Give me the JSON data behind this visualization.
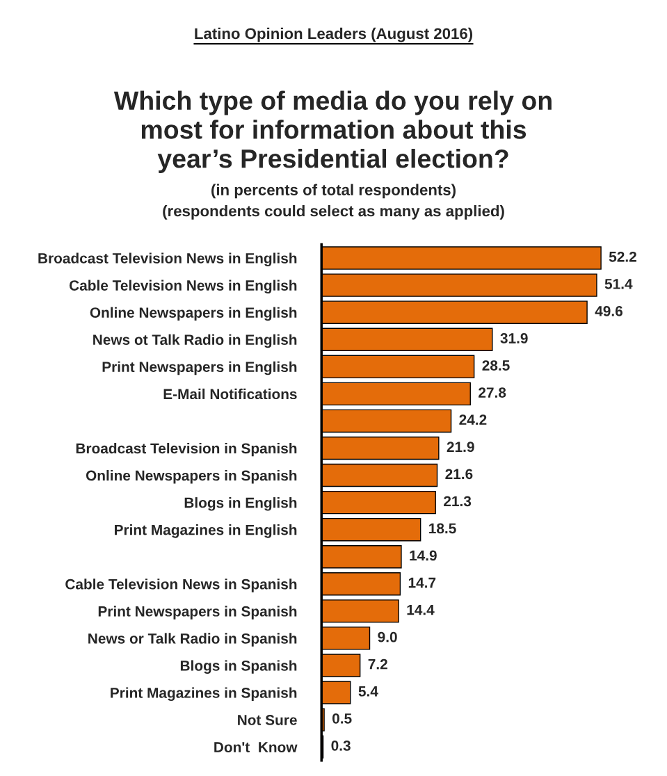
{
  "chart_data": {
    "type": "bar",
    "orientation": "horizontal",
    "annotations": [
      "Latino Opinion Leaders (August 2016)"
    ],
    "title": "Which type of media do you rely on\nmost for information about this\nyear’s Presidential election?",
    "subtitle": "(in percents of total respondents)\n(respondents could select as many as applied)",
    "categories": [
      "Broadcast Television News in English",
      "Cable Television News in English",
      "Online Newspapers in English",
      "News ot Talk Radio in English",
      "Print Newspapers in English",
      "E-Mail Notifications",
      null,
      "Broadcast Television in Spanish",
      "Online Newspapers in Spanish",
      "Blogs in English",
      "Print Magazines in English",
      null,
      "Cable Television News in Spanish",
      "Print Newspapers in Spanish",
      "News or Talk Radio in Spanish",
      "Blogs in Spanish",
      "Print Magazines in Spanish",
      "Not Sure",
      "Don't  Know"
    ],
    "values": [
      52.2,
      51.4,
      49.6,
      31.9,
      28.5,
      27.8,
      24.2,
      21.9,
      21.6,
      21.3,
      18.5,
      14.9,
      14.7,
      14.4,
      9.0,
      7.2,
      5.4,
      0.5,
      0.3
    ],
    "value_labels": [
      "52.2",
      "51.4",
      "49.6",
      "31.9",
      "28.5",
      "27.8",
      "24.2",
      "21.9",
      "21.6",
      "21.3",
      "18.5",
      "14.9",
      "14.7",
      "14.4",
      "9.0",
      "7.2",
      "5.4",
      "0.5",
      "0.3"
    ],
    "color": "#e46c0a",
    "grid": false,
    "legend": false
  }
}
